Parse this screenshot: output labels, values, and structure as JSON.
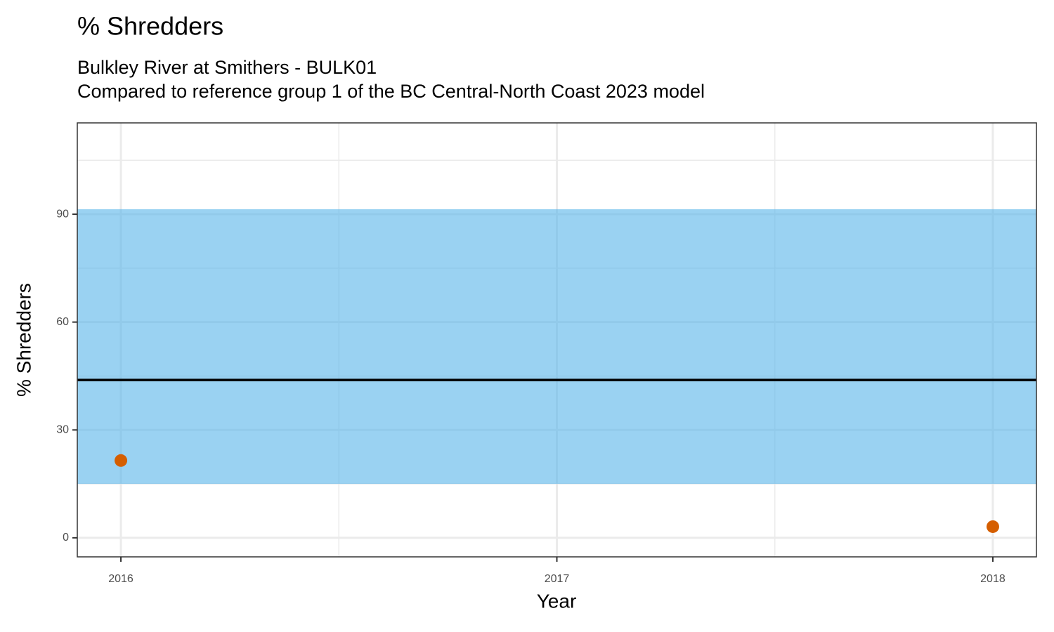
{
  "chart_data": {
    "type": "scatter",
    "title": "% Shredders",
    "subtitle": [
      "Bulkley River at Smithers - BULK01",
      "Compared to reference group 1 of the BC Central-North Coast 2023 model"
    ],
    "xlabel": "Year",
    "ylabel": "% Shredders",
    "x": [
      2016,
      2018
    ],
    "values": [
      21.5,
      3.1
    ],
    "color": "#d55e00",
    "reference_band": [
      15,
      91.4
    ],
    "reference_median": 43.9,
    "band_color": "#56b4e9",
    "median_color": "#000000",
    "xlim": [
      2015.9,
      2018.1
    ],
    "ylim": [
      -5.3,
      115.4
    ],
    "xticks": [
      2016,
      2017,
      2018
    ],
    "yticks": [
      0,
      30,
      60,
      90
    ],
    "x_minor_ticks": [
      2016.5,
      2017.5
    ],
    "y_minor_ticks": [
      15,
      45,
      75,
      105
    ],
    "grid": true
  }
}
